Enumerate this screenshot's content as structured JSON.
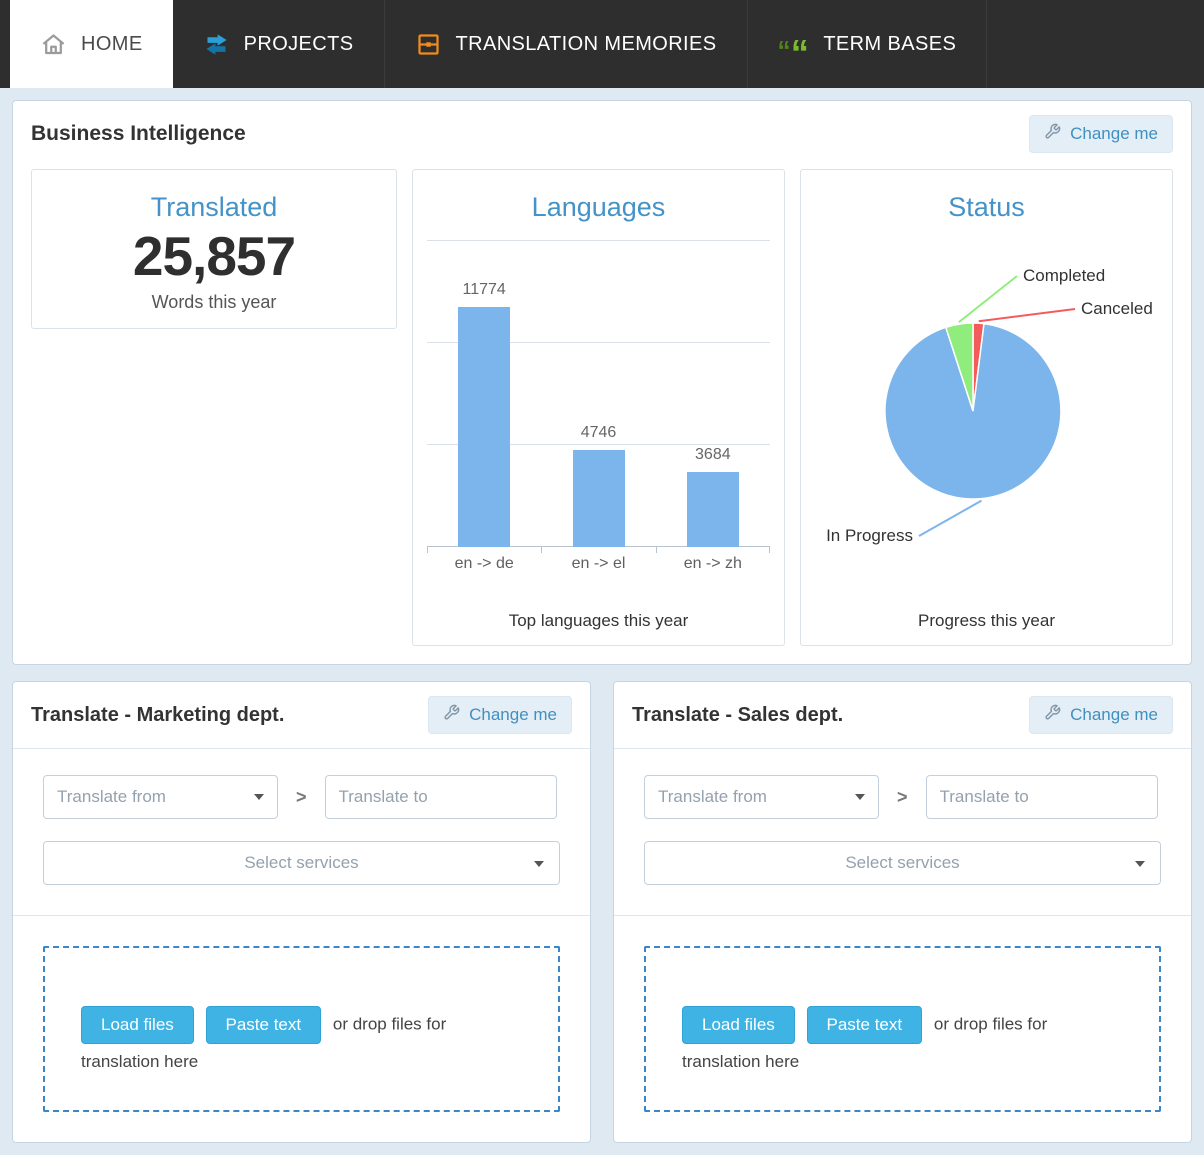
{
  "nav": {
    "tabs": [
      {
        "label": "HOME",
        "icon": "home-icon",
        "active": true
      },
      {
        "label": "PROJECTS",
        "icon": "projects-icon",
        "active": false
      },
      {
        "label": "TRANSLATION MEMORIES",
        "icon": "translation-memories-icon",
        "active": false
      },
      {
        "label": "TERM BASES",
        "icon": "term-bases-icon",
        "active": false
      }
    ]
  },
  "colors": {
    "heading_blue": "#4493c8",
    "bar_blue": "#7cb5ec",
    "pie_blue": "#7cb5ec",
    "pie_green": "#90ed7d",
    "pie_red": "#f45b5b",
    "button_blue": "#3fb3e3",
    "dashed_border_blue": "#3a86c8"
  },
  "bi": {
    "title": "Business Intelligence",
    "change_button": "Change me",
    "translated": {
      "title": "Translated",
      "value": "25,857",
      "subtitle": "Words this year"
    },
    "languages": {
      "title": "Languages",
      "caption": "Top languages this year"
    },
    "status": {
      "title": "Status",
      "caption": "Progress this year"
    }
  },
  "chart_data": [
    {
      "type": "bar",
      "title": "Languages",
      "categories": [
        "en -> de",
        "en -> el",
        "en -> zh"
      ],
      "values": [
        11774,
        4746,
        3684
      ],
      "ylim": [
        0,
        15000
      ],
      "gridline_step": 5000,
      "grid": true,
      "bar_color": "#7cb5ec",
      "caption": "Top languages this year"
    },
    {
      "type": "pie",
      "title": "Status",
      "slices": [
        {
          "label": "Canceled",
          "value": 2,
          "color": "#f45b5b"
        },
        {
          "label": "In Progress",
          "value": 93,
          "color": "#7cb5ec"
        },
        {
          "label": "Completed",
          "value": 5,
          "color": "#90ed7d"
        }
      ],
      "values_are_percent_estimates": true,
      "start": "top-clockwise",
      "caption": "Progress this year"
    }
  ],
  "translate_panels": [
    {
      "title": "Translate - Marketing dept."
    },
    {
      "title": "Translate - Sales dept."
    }
  ],
  "translate_form": {
    "change_button": "Change me",
    "from_placeholder": "Translate from",
    "separator": ">",
    "to_placeholder": "Translate to",
    "services_placeholder": "Select services",
    "load_files_button": "Load files",
    "paste_text_button": "Paste text",
    "drop_hint": "or drop files for translation here"
  }
}
